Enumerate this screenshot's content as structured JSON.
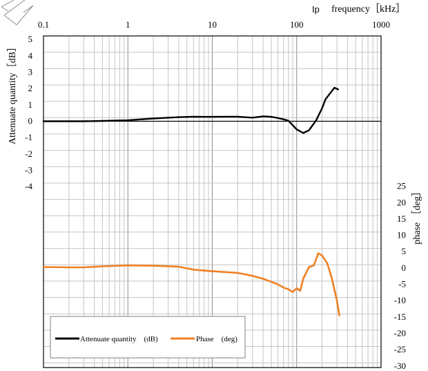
{
  "chart_data": {
    "type": "line",
    "top_label": "Ip",
    "xlabel": "frequency［kHz］",
    "ylabel_left": "Attenuate quantity［dB］",
    "ylabel_right": "phase ［deg］",
    "x_scale": "log",
    "xlim": [
      0.1,
      1000
    ],
    "x_ticks": [
      "0.1",
      "1",
      "10",
      "100",
      "1000"
    ],
    "y_left_ticks": [
      "5",
      "4",
      "3",
      "2",
      "1",
      "0",
      "-1",
      "-2",
      "-3",
      "-4"
    ],
    "y_right_ticks": [
      "25",
      "20",
      "15",
      "10",
      "5",
      "0",
      "-5",
      "-10",
      "-15",
      "-20",
      "-25",
      "-30"
    ],
    "grid": true,
    "legend_position": "bottom-left",
    "series": [
      {
        "name": "Attenuate quantity　(dB)",
        "axis": "left",
        "color": "#000000",
        "x": [
          0.1,
          0.2,
          0.3,
          0.5,
          1,
          2,
          4,
          6,
          8,
          10,
          15,
          20,
          30,
          40,
          50,
          60,
          70,
          80,
          90,
          100,
          120,
          140,
          170,
          200,
          220,
          250,
          280,
          310
        ],
        "y": [
          0,
          0,
          0,
          0.02,
          0.06,
          0.17,
          0.25,
          0.28,
          0.27,
          0.27,
          0.28,
          0.28,
          0.22,
          0.3,
          0.27,
          0.2,
          0.12,
          0.03,
          -0.25,
          -0.5,
          -0.72,
          -0.55,
          0.05,
          0.8,
          1.35,
          1.72,
          2.05,
          1.95
        ]
      },
      {
        "name": "Phase　(deg)",
        "axis": "right",
        "color": "#f07f22",
        "x": [
          0.1,
          0.2,
          0.3,
          0.5,
          1,
          2,
          4,
          6,
          10,
          20,
          30,
          40,
          50,
          60,
          70,
          80,
          85,
          90,
          100,
          110,
          120,
          140,
          160,
          180,
          200,
          230,
          260,
          300,
          320
        ],
        "y": [
          0.3,
          0.2,
          0.2,
          0.5,
          0.8,
          0.7,
          0.4,
          -0.5,
          -1.0,
          -1.5,
          -2.4,
          -3.3,
          -4.2,
          -5.0,
          -6.0,
          -6.5,
          -7.0,
          -7.3,
          -6.2,
          -7.0,
          -3.2,
          0.3,
          0.8,
          4.5,
          3.8,
          1.5,
          -3.0,
          -10.0,
          -14.5
        ]
      }
    ]
  }
}
